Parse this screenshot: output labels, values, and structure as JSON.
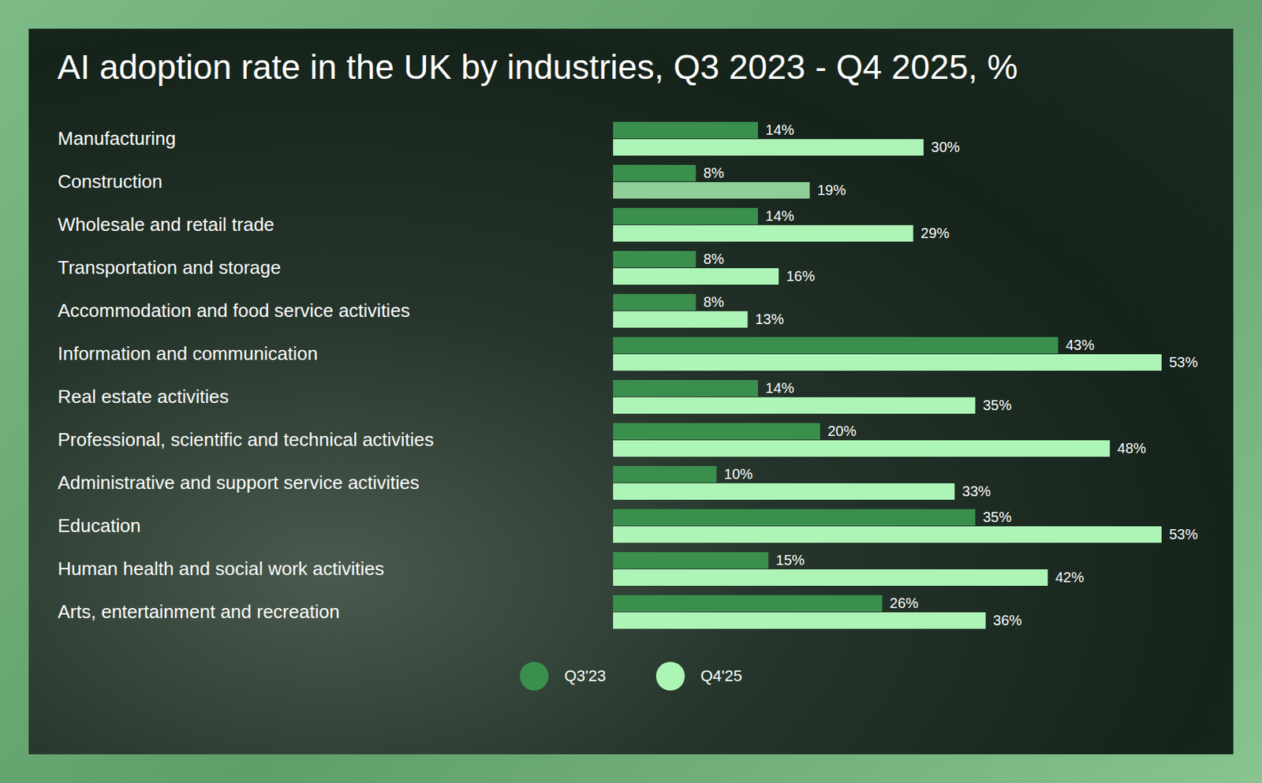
{
  "chart_data": {
    "type": "bar",
    "orientation": "horizontal",
    "title": "AI adoption rate in the UK by industries, Q3 2023 - Q4 2025, %",
    "categories": [
      "Manufacturing",
      "Construction",
      "Wholesale and retail trade",
      "Transportation and storage",
      "Accommodation and food service activities",
      "Information and communication",
      "Real estate activities",
      "Professional, scientific and technical activities",
      "Administrative and support service activities",
      "Education",
      "Human health and social work activities",
      "Arts, entertainment and recreation"
    ],
    "series": [
      {
        "name": "Q3'23",
        "color": "#3a8f4d",
        "values": [
          14,
          8,
          14,
          8,
          8,
          43,
          14,
          20,
          10,
          35,
          15,
          26
        ],
        "value_labels": [
          "14%",
          "8%",
          "14%",
          "8%",
          "8%",
          "43%",
          "14%",
          "20%",
          "10%",
          "35%",
          "15%",
          "26%"
        ]
      },
      {
        "name": "Q4'25",
        "color": "#adf5b7",
        "colors": [
          "#adf5b7",
          "#8fcf98",
          "#adf5b7",
          "#adf5b7",
          "#adf5b7",
          "#adf5b7",
          "#adf5b7",
          "#adf5b7",
          "#adf5b7",
          "#adf5b7",
          "#adf5b7",
          "#adf5b7"
        ],
        "values": [
          30,
          19,
          29,
          16,
          13,
          53,
          35,
          48,
          33,
          53,
          42,
          36
        ],
        "value_labels": [
          "30%",
          "19%",
          "29%",
          "16%",
          "13%",
          "53%",
          "35%",
          "48%",
          "33%",
          "53%",
          "42%",
          "36%"
        ]
      }
    ],
    "data_labels": true,
    "tick_labels": "y",
    "grid": false,
    "legend": "bottom"
  }
}
